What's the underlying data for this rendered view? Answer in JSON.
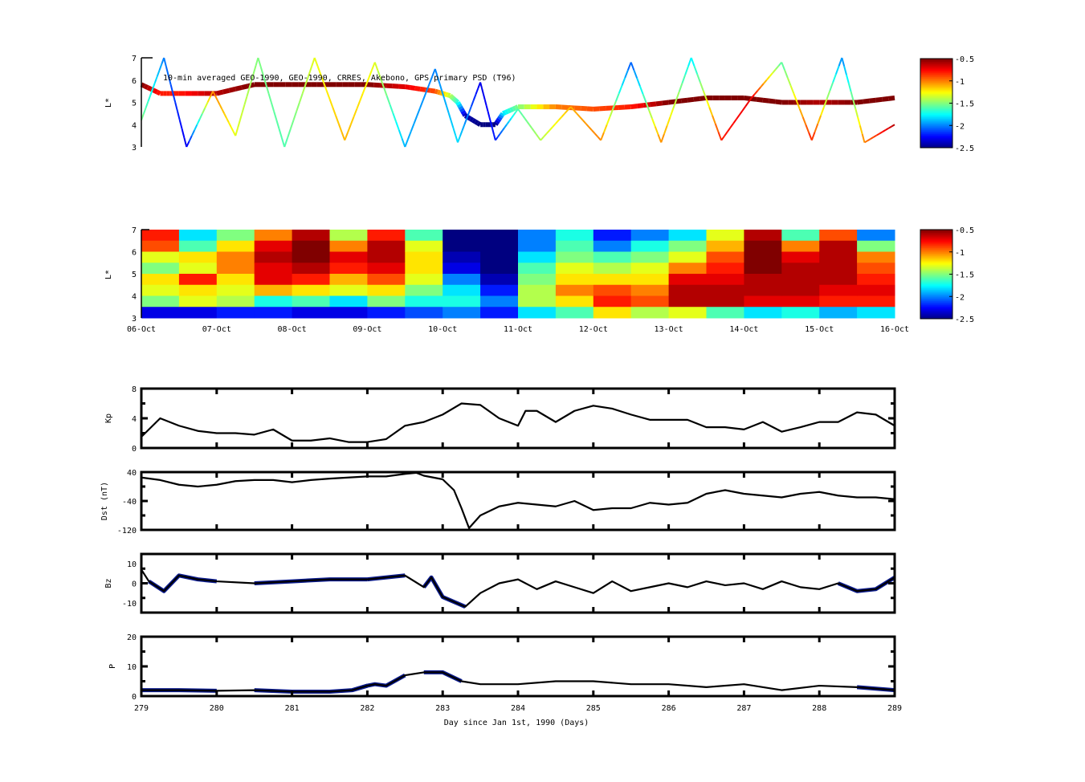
{
  "chart_data": [
    {
      "type": "scatter",
      "title": "10-min averaged GEO-1990, GEO-1990, CRRES, Akebono, GPS  primary PSD (T96)",
      "ylabel": "L*",
      "ylim": [
        3,
        7
      ],
      "yticks": [
        "7",
        "6",
        "5",
        "4",
        "3"
      ],
      "xlim_day": [
        279,
        289
      ],
      "colorbar": {
        "colormap": "jet",
        "range": [
          -2.5,
          -0.5
        ],
        "ticks": [
          "-0.5",
          "-1",
          "-1.5",
          "-2",
          "-2.5"
        ]
      },
      "series": [
        {
          "style": "thick",
          "points": [
            [
              279,
              5.8,
              -0.5
            ],
            [
              279.25,
              5.4,
              -0.8
            ],
            [
              279.5,
              5.4,
              -0.8
            ],
            [
              280,
              5.4,
              -0.6
            ],
            [
              280.5,
              5.8,
              -0.5
            ],
            [
              281,
              5.8,
              -0.5
            ],
            [
              281.5,
              5.8,
              -0.5
            ],
            [
              282,
              5.8,
              -0.5
            ],
            [
              282.5,
              5.7,
              -0.7
            ],
            [
              282.9,
              5.5,
              -0.9
            ],
            [
              283.1,
              5.3,
              -1.4
            ],
            [
              283.2,
              5.0,
              -1.7
            ],
            [
              283.3,
              4.4,
              -2.4
            ],
            [
              283.5,
              4.0,
              -2.5
            ],
            [
              283.7,
              4.0,
              -2.5
            ],
            [
              283.8,
              4.5,
              -1.8
            ],
            [
              284,
              4.8,
              -1.5
            ],
            [
              284.5,
              4.8,
              -1.0
            ],
            [
              285,
              4.7,
              -0.9
            ],
            [
              285.5,
              4.8,
              -0.8
            ],
            [
              286,
              5.0,
              -0.5
            ],
            [
              286.5,
              5.2,
              -0.5
            ],
            [
              287,
              5.2,
              -0.5
            ],
            [
              287.5,
              5.0,
              -0.5
            ],
            [
              288,
              5.0,
              -0.6
            ],
            [
              288.5,
              5.0,
              -0.5
            ],
            [
              289,
              5.2,
              -0.5
            ]
          ]
        },
        {
          "style": "thin",
          "points": [
            [
              279,
              4.2,
              -1.5
            ],
            [
              279.3,
              7,
              -2.0
            ],
            [
              279.6,
              3,
              -2.3
            ],
            [
              279.95,
              5.5,
              -1.0
            ],
            [
              280.25,
              3.5,
              -1.3
            ],
            [
              280.55,
              7,
              -1.5
            ],
            [
              280.9,
              3,
              -1.6
            ],
            [
              281.3,
              7,
              -1.3
            ],
            [
              281.7,
              3.3,
              -1.1
            ],
            [
              282.1,
              6.8,
              -1.3
            ],
            [
              282.5,
              3,
              -1.9
            ],
            [
              282.9,
              6.5,
              -2.0
            ],
            [
              283.2,
              3.2,
              -1.8
            ],
            [
              283.5,
              5.9,
              -2.3
            ],
            [
              283.7,
              3.3,
              -2.2
            ],
            [
              284,
              4.7,
              -1.6
            ],
            [
              284.3,
              3.3,
              -1.4
            ],
            [
              284.7,
              4.8,
              -1.1
            ],
            [
              285.1,
              3.3,
              -1.0
            ],
            [
              285.5,
              6.8,
              -2.1
            ],
            [
              285.9,
              3.2,
              -1.0
            ],
            [
              286.3,
              7,
              -1.8
            ],
            [
              286.7,
              3.3,
              -0.8
            ],
            [
              287.1,
              5.2,
              -0.7
            ],
            [
              287.5,
              6.8,
              -1.6
            ],
            [
              287.9,
              3.3,
              -0.8
            ],
            [
              288.3,
              7,
              -2.0
            ],
            [
              288.6,
              3.2,
              -1.0
            ],
            [
              289,
              4,
              -0.6
            ]
          ]
        }
      ]
    },
    {
      "type": "heatmap",
      "ylabel": "L*",
      "ylim": [
        3,
        7
      ],
      "yticks": [
        "7",
        "6",
        "5",
        "4",
        "3"
      ],
      "xticks": [
        "06-Oct",
        "07-Oct",
        "08-Oct",
        "09-Oct",
        "10-Oct",
        "11-Oct",
        "12-Oct",
        "13-Oct",
        "14-Oct",
        "15-Oct",
        "16-Oct"
      ],
      "colorbar": {
        "colormap": "jet",
        "range": [
          -2.5,
          -0.5
        ],
        "ticks": [
          "-0.5",
          "-1",
          "-1.5",
          "-2",
          "-2.5"
        ]
      },
      "L_rows_top_to_bottom": [
        6.75,
        6.25,
        5.75,
        5.25,
        4.75,
        4.25,
        3.75,
        3.25
      ],
      "columns_half_day": [
        [
          -0.8,
          -0.9,
          -1.3,
          -1.5,
          -1.2,
          -1.3,
          -1.5,
          -2.3
        ],
        [
          -1.8,
          -1.6,
          -1.2,
          -1.3,
          -0.8,
          -1.2,
          -1.3,
          -2.3
        ],
        [
          -1.5,
          -1.2,
          -1.0,
          -1.0,
          -1.2,
          -1.3,
          -1.4,
          -2.2
        ],
        [
          -1.0,
          -0.7,
          -0.6,
          -0.7,
          -0.7,
          -1.1,
          -1.7,
          -2.2
        ],
        [
          -0.6,
          -0.5,
          -0.5,
          -0.6,
          -0.8,
          -1.2,
          -1.6,
          -2.3
        ],
        [
          -1.4,
          -1.0,
          -0.7,
          -0.8,
          -1.1,
          -1.3,
          -1.8,
          -2.3
        ],
        [
          -0.8,
          -0.6,
          -0.6,
          -0.7,
          -0.9,
          -1.2,
          -1.5,
          -2.2
        ],
        [
          -1.6,
          -1.3,
          -1.2,
          -1.2,
          -1.3,
          -1.5,
          -1.7,
          -2.1
        ],
        [
          -2.5,
          -2.5,
          -2.4,
          -2.3,
          -2.0,
          -1.8,
          -1.7,
          -2.0
        ],
        [
          -2.5,
          -2.5,
          -2.5,
          -2.5,
          -2.4,
          -2.2,
          -2.0,
          -2.2
        ],
        [
          -2.0,
          -2.0,
          -1.8,
          -1.6,
          -1.5,
          -1.4,
          -1.4,
          -1.8
        ],
        [
          -1.7,
          -1.6,
          -1.5,
          -1.3,
          -1.2,
          -1.0,
          -1.2,
          -1.6
        ],
        [
          -2.2,
          -2.0,
          -1.6,
          -1.4,
          -1.2,
          -0.9,
          -0.8,
          -1.2
        ],
        [
          -2.0,
          -1.7,
          -1.5,
          -1.3,
          -1.2,
          -1.0,
          -0.9,
          -1.4
        ],
        [
          -1.8,
          -1.5,
          -1.3,
          -1.0,
          -0.7,
          -0.6,
          -0.6,
          -1.3
        ],
        [
          -1.3,
          -1.1,
          -0.9,
          -0.8,
          -0.7,
          -0.6,
          -0.6,
          -1.6
        ],
        [
          -0.6,
          -0.5,
          -0.5,
          -0.5,
          -0.6,
          -0.6,
          -0.7,
          -1.8
        ],
        [
          -1.6,
          -1.0,
          -0.7,
          -0.6,
          -0.6,
          -0.6,
          -0.7,
          -1.7
        ],
        [
          -0.9,
          -0.6,
          -0.6,
          -0.6,
          -0.6,
          -0.7,
          -0.8,
          -1.9
        ],
        [
          -2.0,
          -1.5,
          -1.0,
          -0.9,
          -0.8,
          -0.7,
          -0.8,
          -1.8
        ]
      ]
    },
    {
      "type": "line",
      "ylabel": "Kp",
      "ylim": [
        0,
        8
      ],
      "yticks": [
        "8",
        "4",
        "0"
      ],
      "x": [
        279,
        279.1,
        279.25,
        279.5,
        279.75,
        280,
        280.25,
        280.5,
        280.75,
        281,
        281.25,
        281.5,
        281.75,
        282,
        282.25,
        282.5,
        282.75,
        283,
        283.25,
        283.5,
        283.75,
        284,
        284.1,
        284.25,
        284.5,
        284.75,
        285,
        285.25,
        285.5,
        285.75,
        286,
        286.25,
        286.5,
        286.75,
        287,
        287.25,
        287.5,
        287.75,
        288,
        288.25,
        288.5,
        288.75,
        289
      ],
      "y": [
        1.5,
        2.5,
        4,
        3,
        2.3,
        2,
        2,
        1.8,
        2.5,
        1,
        1,
        1.3,
        0.8,
        0.8,
        1.2,
        3,
        3.5,
        4.5,
        6,
        5.8,
        4,
        3,
        5,
        5,
        3.5,
        5,
        5.7,
        5.3,
        4.5,
        3.8,
        3.8,
        3.8,
        2.8,
        2.8,
        2.5,
        3.5,
        2.2,
        2.8,
        3.5,
        3.5,
        4.8,
        4.5,
        3
      ]
    },
    {
      "type": "line",
      "ylabel": "Dst (nT)",
      "ylim": [
        -120,
        40
      ],
      "yticks": [
        "40",
        "-40",
        "-120"
      ],
      "x": [
        279,
        279.25,
        279.5,
        279.75,
        280,
        280.25,
        280.5,
        280.75,
        281,
        281.25,
        281.5,
        281.75,
        282,
        282.25,
        282.5,
        282.65,
        282.75,
        283,
        283.15,
        283.25,
        283.35,
        283.5,
        283.75,
        284,
        284.25,
        284.5,
        284.75,
        285,
        285.25,
        285.5,
        285.75,
        286,
        286.25,
        286.5,
        286.75,
        287,
        287.25,
        287.5,
        287.75,
        288,
        288.25,
        288.5,
        288.75,
        289
      ],
      "y": [
        25,
        18,
        5,
        0,
        5,
        15,
        18,
        18,
        12,
        18,
        22,
        25,
        28,
        28,
        35,
        38,
        30,
        20,
        -10,
        -60,
        -115,
        -80,
        -55,
        -45,
        -50,
        -55,
        -40,
        -65,
        -60,
        -60,
        -45,
        -50,
        -45,
        -20,
        -10,
        -20,
        -25,
        -30,
        -20,
        -15,
        -25,
        -30,
        -30,
        -35
      ]
    },
    {
      "type": "line",
      "ylabel": "Bz",
      "ylim": [
        -15,
        15
      ],
      "yticks": [
        "10",
        "0",
        "-10"
      ],
      "x": [
        279,
        279.1,
        279.3,
        279.5,
        279.75,
        280,
        280.5,
        281,
        281.5,
        282,
        282.5,
        282.75,
        282.85,
        283,
        283.3,
        283.5,
        283.75,
        284,
        284.25,
        284.5,
        284.75,
        285,
        285.25,
        285.5,
        285.75,
        286,
        286.25,
        286.5,
        286.75,
        287,
        287.25,
        287.5,
        287.75,
        288,
        288.25,
        288.5,
        288.75,
        289
      ],
      "y": [
        7,
        1,
        -4,
        4,
        2,
        1,
        0,
        1,
        2,
        2,
        4,
        -2,
        3,
        -7,
        -12,
        -5,
        0,
        2,
        -3,
        1,
        -2,
        -5,
        1,
        -4,
        -2,
        0,
        -2,
        1,
        -1,
        0,
        -3,
        1,
        -2,
        -3,
        0,
        -4,
        -3,
        3
      ],
      "highlight_color": "#0a1a8c",
      "highlight_ranges": [
        [
          279.2,
          280
        ],
        [
          280.5,
          281.9
        ],
        [
          282,
          282.5
        ],
        [
          282.8,
          283.3
        ],
        [
          288.3,
          289
        ]
      ]
    },
    {
      "type": "line",
      "ylabel": "P",
      "ylim": [
        0,
        20
      ],
      "yticks": [
        "20",
        "10",
        "0"
      ],
      "xticks": [
        "279",
        "280",
        "281",
        "282",
        "283",
        "284",
        "285",
        "286",
        "287",
        "288",
        "289"
      ],
      "xlabel": "Day since Jan 1st, 1990 (Days)",
      "x": [
        279,
        279.5,
        280,
        280.5,
        281,
        281.5,
        281.8,
        282,
        282.1,
        282.25,
        282.5,
        282.75,
        283,
        283.25,
        283.5,
        284,
        284.5,
        285,
        285.5,
        286,
        286.5,
        287,
        287.5,
        288,
        288.5,
        289
      ],
      "y": [
        2,
        2,
        1.8,
        2,
        1.5,
        1.5,
        2,
        3.5,
        4,
        3.5,
        7,
        8,
        8,
        5,
        4,
        4,
        5,
        5,
        4,
        4,
        3,
        4,
        2,
        3.5,
        3,
        2
      ],
      "highlight_color": "#0a1a8c",
      "highlight_ranges": [
        [
          279.1,
          280
        ],
        [
          280.5,
          281.9
        ],
        [
          281.7,
          282.5
        ],
        [
          282.8,
          283.3
        ],
        [
          288.3,
          288.9
        ]
      ]
    }
  ]
}
